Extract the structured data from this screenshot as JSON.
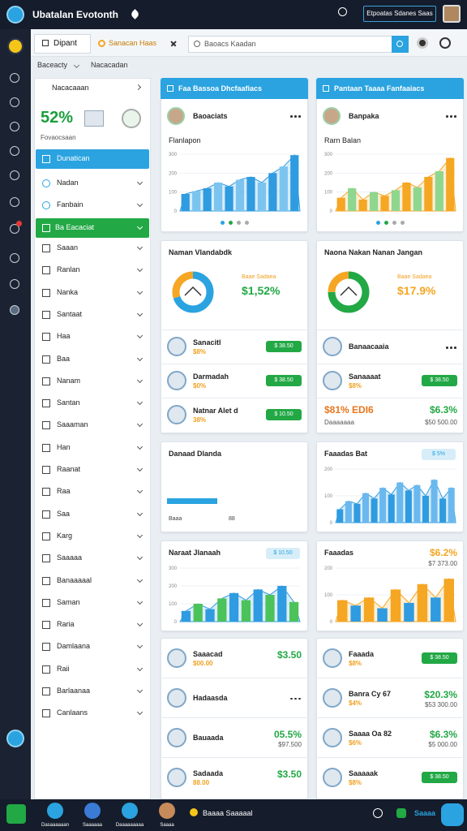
{
  "topbar": {
    "title": "Ubatalan Evotonth",
    "button": "Etpoatas Sdanes Saas"
  },
  "tabs": [
    "Dipant",
    "Sanacan Haas"
  ],
  "search": "Baoacs Kaadan",
  "breadcrumb": [
    "Baceacty",
    "Nacacadan"
  ],
  "sidebar": {
    "header": "Nacacaaan",
    "stat": "52%",
    "stat_caption": "Fovaocsaan",
    "active": "Dunatican",
    "items": [
      "Nadan",
      "Fanbain"
    ],
    "section": "Ba Eacaciat",
    "items2": [
      "Saaan",
      "Ranlan",
      "Nanka",
      "Santaat",
      "Haa",
      "Baa",
      "Nanam",
      "Santan",
      "Saaaman",
      "Han",
      "Raanat",
      "Raa",
      "Saa",
      "Karg",
      "Saaaaa",
      "Banaaaaal",
      "Saman",
      "Raria",
      "Damlaana",
      "Raii",
      "Barlaanaa",
      "Canlaans"
    ]
  },
  "left_cards": [
    {
      "header": "Faa Bassoa Dhcfaafiacs",
      "row": "Baoaciats",
      "chart": {
        "type": "bar",
        "title": "Flanlapon",
        "ylim": [
          0,
          300
        ],
        "yticks": [
          0,
          100,
          200,
          300
        ],
        "values": [
          90,
          105,
          120,
          150,
          130,
          165,
          180,
          150,
          200,
          235,
          295
        ],
        "palette": [
          "#2f9be0",
          "#7cc4f0"
        ]
      }
    },
    {
      "title": "Naman Vlandabdk",
      "donut": {
        "values": [
          70,
          30
        ],
        "colors": [
          "#2aa3e0",
          "#f5a623"
        ]
      },
      "stat": "$1,52%",
      "stat_caption": "Baae Sadaea",
      "stat_color": "#22a845",
      "rows": [
        {
          "name": "Sanacitl",
          "sub": "$8%",
          "button": "$ 38.50"
        },
        {
          "name": "Darmadah",
          "sub": "$0%",
          "button": "$ 38.50"
        },
        {
          "name": "Natnar Alet d",
          "sub": "38%",
          "button": "$ 10.50"
        }
      ]
    },
    {
      "title": "Danaad Dlanda",
      "progress": {
        "value": 38,
        "xlim": [
          0,
          100
        ],
        "labels": [
          "Baaa",
          "88"
        ]
      }
    },
    {
      "title": "Naraat Jlanaah",
      "chip": "$ 10.50",
      "chart": {
        "type": "bar",
        "ylim": [
          0,
          300
        ],
        "yticks": [
          0,
          100,
          200,
          300
        ],
        "values": [
          60,
          100,
          70,
          130,
          160,
          120,
          180,
          150,
          200,
          110
        ],
        "palette": [
          "#2f9be0",
          "#4cc35a"
        ]
      }
    },
    {
      "rows": [
        {
          "name": "Saaacad",
          "sub": "$00.00",
          "right": "$3.50"
        },
        {
          "name": "Hadaasda"
        },
        {
          "name": "Bauaada",
          "right": "05.5%",
          "right_sub": "$97.500"
        },
        {
          "name": "Sadaada",
          "sub": "88.00",
          "right": "$3.50"
        }
      ]
    }
  ],
  "right_cards": [
    {
      "header": "Pantaan Taaaa Fanfaaiacs",
      "row": "Banpaka",
      "chart": {
        "type": "bar",
        "title": "Rarn Balan",
        "ylim": [
          0,
          300
        ],
        "yticks": [
          0,
          100,
          200,
          300
        ],
        "values": [
          70,
          120,
          60,
          100,
          80,
          110,
          150,
          125,
          180,
          210,
          280
        ],
        "palette": [
          "#f5a623",
          "#8fd68f"
        ]
      }
    },
    {
      "title": "Naona Nakan Nanan Jangan",
      "donut": {
        "values": [
          75,
          25
        ],
        "colors": [
          "#22a845",
          "#f5a623"
        ]
      },
      "stat": "$17.9%",
      "stat_caption": "Baae Sadaea",
      "stat_color": "#f5a623",
      "rows": [
        {
          "name": "Banaacaaia"
        },
        {
          "name": "Sanaaaat",
          "sub": "$8%",
          "button": "$ 38.50"
        }
      ],
      "stat_row": {
        "left": "$81% EDI6",
        "left_sub": "Daaaaaaa",
        "right": "$6.3%",
        "right_sub": "$50 500.00"
      }
    },
    {
      "title": "Faaadas Bat",
      "chip": "$ 5%",
      "chart": {
        "type": "bar",
        "ylim": [
          0,
          200
        ],
        "yticks": [
          0,
          100,
          200
        ],
        "values": [
          50,
          80,
          70,
          110,
          90,
          130,
          105,
          150,
          120,
          140,
          100,
          160,
          90,
          130
        ],
        "palette": [
          "#2f9be0",
          "#6ab8ee"
        ]
      }
    },
    {
      "title": "Faaadas",
      "stat": "$6.2%",
      "stat_caption": "$7 373.00",
      "stat_color": "#f5a623",
      "chart": {
        "type": "bar",
        "ylim": [
          0,
          200
        ],
        "yticks": [
          0,
          100,
          200
        ],
        "values": [
          80,
          60,
          90,
          50,
          120,
          70,
          140,
          90,
          160
        ],
        "palette": [
          "#f5a623",
          "#2f9be0"
        ]
      }
    },
    {
      "rows": [
        {
          "name": "Faaada",
          "sub": "$8%",
          "button": "$ 38.50"
        },
        {
          "name": "Banra Cy 67",
          "sub": "$4%",
          "right": "$20.3%",
          "right_sub": "$53 300.00"
        },
        {
          "name": "Saaaa Oa 82",
          "sub": "$6%",
          "right": "$6.3%",
          "right_sub": "$5 000.00"
        },
        {
          "name": "Saaaaak",
          "sub": "$8%",
          "button": "$ 38.50"
        }
      ]
    }
  ],
  "taskbar": {
    "items": [
      "Dasaaaaaan",
      "Saaaaaa",
      "Daaaaaaaaa",
      "Saaaa"
    ],
    "status": "Baaaa Saaaaal",
    "user": "Saaaa"
  }
}
